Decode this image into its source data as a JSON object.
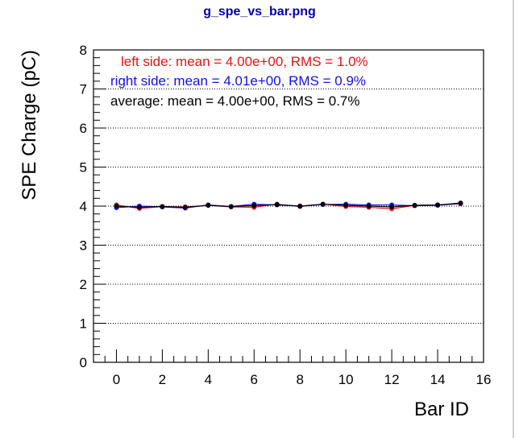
{
  "window": {
    "title": "g_spe_vs_bar.png"
  },
  "colors": {
    "left": "#ee1111",
    "right": "#1111ee",
    "average": "#000000",
    "title": "#0000aa"
  },
  "chart_data": {
    "type": "line",
    "title": "g_spe_vs_bar.png",
    "xlabel": "Bar ID",
    "ylabel": "SPE Charge (pC)",
    "xlim": [
      -1,
      16
    ],
    "ylim": [
      0,
      8
    ],
    "x_ticks": [
      "0",
      "2",
      "4",
      "6",
      "8",
      "10",
      "12",
      "14",
      "16"
    ],
    "y_ticks": [
      "0",
      "1",
      "2",
      "3",
      "4",
      "5",
      "6",
      "7",
      "8"
    ],
    "grid": "horizontal-dotted",
    "legend_position": "top-left",
    "x": [
      0,
      1,
      2,
      3,
      4,
      5,
      6,
      7,
      8,
      9,
      10,
      11,
      12,
      13,
      14,
      15
    ],
    "series": [
      {
        "name": "left side",
        "legend": "left side:   mean = 4.00e+00, RMS = 1.0%",
        "color": "#ee1111",
        "values": [
          4.03,
          3.94,
          3.99,
          3.98,
          4.02,
          3.98,
          3.97,
          4.05,
          3.99,
          4.05,
          3.99,
          3.97,
          3.93,
          4.02,
          4.03,
          4.06
        ]
      },
      {
        "name": "right side",
        "legend": "right side:   mean = 4.01e+00, RMS = 0.9%",
        "color": "#1111ee",
        "values": [
          3.96,
          4.0,
          3.98,
          3.95,
          4.03,
          3.99,
          4.05,
          4.03,
          4.0,
          4.04,
          4.05,
          4.03,
          4.03,
          4.01,
          4.02,
          4.07
        ]
      },
      {
        "name": "average",
        "legend": "average:   mean = 4.00e+00, RMS = 0.7%",
        "color": "#000000",
        "values": [
          4.0,
          3.97,
          3.99,
          3.97,
          4.02,
          3.99,
          4.01,
          4.04,
          4.0,
          4.05,
          4.02,
          4.0,
          3.98,
          4.02,
          4.03,
          4.08
        ]
      }
    ]
  }
}
